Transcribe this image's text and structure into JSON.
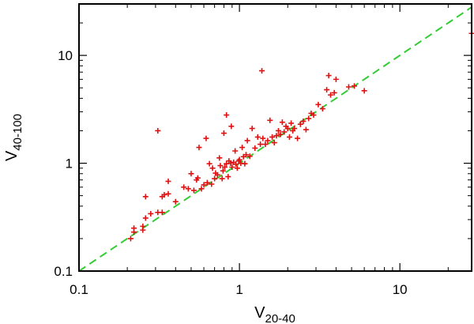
{
  "chart_data": {
    "type": "scatter",
    "title": "",
    "xlabel": {
      "main": "V",
      "sub": "20-40"
    },
    "ylabel": {
      "main": "V",
      "sub": "40-100"
    },
    "x_scale": "log",
    "y_scale": "log",
    "xlim": [
      0.1,
      28
    ],
    "ylim": [
      0.1,
      30
    ],
    "x_ticks": [
      {
        "value": 0.1,
        "label": "0.1"
      },
      {
        "value": 1,
        "label": "1"
      },
      {
        "value": 10,
        "label": "10"
      }
    ],
    "y_ticks": [
      {
        "value": 0.1,
        "label": "0.1"
      },
      {
        "value": 1,
        "label": "1"
      },
      {
        "value": 10,
        "label": "10"
      }
    ],
    "grid": false,
    "legend": "none",
    "marker": "plus",
    "colors": {
      "points": "#e01010",
      "reference_line": "#33cc33",
      "axes": "#000000"
    },
    "reference_line": {
      "style": "dashed",
      "equation": "y = x"
    },
    "points": [
      [
        0.21,
        0.2
      ],
      [
        0.22,
        0.23
      ],
      [
        0.22,
        0.25
      ],
      [
        0.25,
        0.24
      ],
      [
        0.25,
        0.26
      ],
      [
        0.26,
        0.49
      ],
      [
        0.26,
        0.31
      ],
      [
        0.28,
        0.34
      ],
      [
        0.31,
        0.35
      ],
      [
        0.31,
        2.0
      ],
      [
        0.33,
        0.35
      ],
      [
        0.33,
        0.49
      ],
      [
        0.34,
        0.51
      ],
      [
        0.36,
        0.52
      ],
      [
        0.36,
        0.68
      ],
      [
        0.4,
        0.44
      ],
      [
        0.45,
        0.6
      ],
      [
        0.48,
        0.58
      ],
      [
        0.5,
        0.8
      ],
      [
        0.52,
        0.56
      ],
      [
        0.54,
        0.7
      ],
      [
        0.55,
        0.73
      ],
      [
        0.56,
        1.4
      ],
      [
        0.58,
        0.58
      ],
      [
        0.6,
        0.63
      ],
      [
        0.62,
        1.7
      ],
      [
        0.63,
        0.66
      ],
      [
        0.65,
        0.99
      ],
      [
        0.67,
        0.64
      ],
      [
        0.68,
        0.9
      ],
      [
        0.7,
        0.72
      ],
      [
        0.71,
        0.81
      ],
      [
        0.73,
        0.78
      ],
      [
        0.75,
        1.12
      ],
      [
        0.76,
        0.95
      ],
      [
        0.78,
        0.72
      ],
      [
        0.79,
        0.85
      ],
      [
        0.8,
        1.9
      ],
      [
        0.81,
        0.92
      ],
      [
        0.83,
        0.99
      ],
      [
        0.83,
        2.8
      ],
      [
        0.85,
        0.75
      ],
      [
        0.86,
        1.05
      ],
      [
        0.88,
        1.0
      ],
      [
        0.89,
        2.2
      ],
      [
        0.9,
        0.92
      ],
      [
        0.92,
        1.02
      ],
      [
        0.94,
        1.3
      ],
      [
        0.95,
        0.98
      ],
      [
        0.97,
        0.9
      ],
      [
        0.99,
        1.05
      ],
      [
        1.0,
        1.08
      ],
      [
        1.02,
        1.0
      ],
      [
        1.04,
        1.4
      ],
      [
        1.06,
        1.15
      ],
      [
        1.08,
        0.99
      ],
      [
        1.1,
        1.2
      ],
      [
        1.12,
        1.62
      ],
      [
        1.16,
        1.16
      ],
      [
        1.2,
        2.1
      ],
      [
        1.25,
        1.38
      ],
      [
        1.3,
        1.75
      ],
      [
        1.35,
        1.5
      ],
      [
        1.38,
        7.2
      ],
      [
        1.4,
        1.7
      ],
      [
        1.45,
        1.5
      ],
      [
        1.5,
        1.62
      ],
      [
        1.55,
        2.5
      ],
      [
        1.6,
        1.75
      ],
      [
        1.65,
        1.55
      ],
      [
        1.7,
        1.8
      ],
      [
        1.75,
        2.0
      ],
      [
        1.8,
        1.85
      ],
      [
        1.85,
        2.4
      ],
      [
        1.9,
        1.95
      ],
      [
        1.95,
        2.2
      ],
      [
        2.0,
        2.1
      ],
      [
        2.05,
        1.75
      ],
      [
        2.1,
        2.35
      ],
      [
        2.15,
        2.0
      ],
      [
        2.2,
        2.1
      ],
      [
        2.3,
        1.7
      ],
      [
        2.4,
        2.3
      ],
      [
        2.5,
        2.45
      ],
      [
        2.6,
        2.05
      ],
      [
        2.7,
        2.6
      ],
      [
        2.8,
        2.9
      ],
      [
        2.9,
        2.8
      ],
      [
        3.1,
        3.5
      ],
      [
        3.3,
        3.2
      ],
      [
        3.5,
        4.8
      ],
      [
        3.6,
        6.5
      ],
      [
        3.7,
        4.3
      ],
      [
        3.9,
        4.5
      ],
      [
        4.0,
        6.0
      ],
      [
        4.8,
        5.1
      ],
      [
        5.2,
        5.2
      ],
      [
        6.0,
        4.7
      ],
      [
        28.0,
        16.0
      ]
    ]
  }
}
